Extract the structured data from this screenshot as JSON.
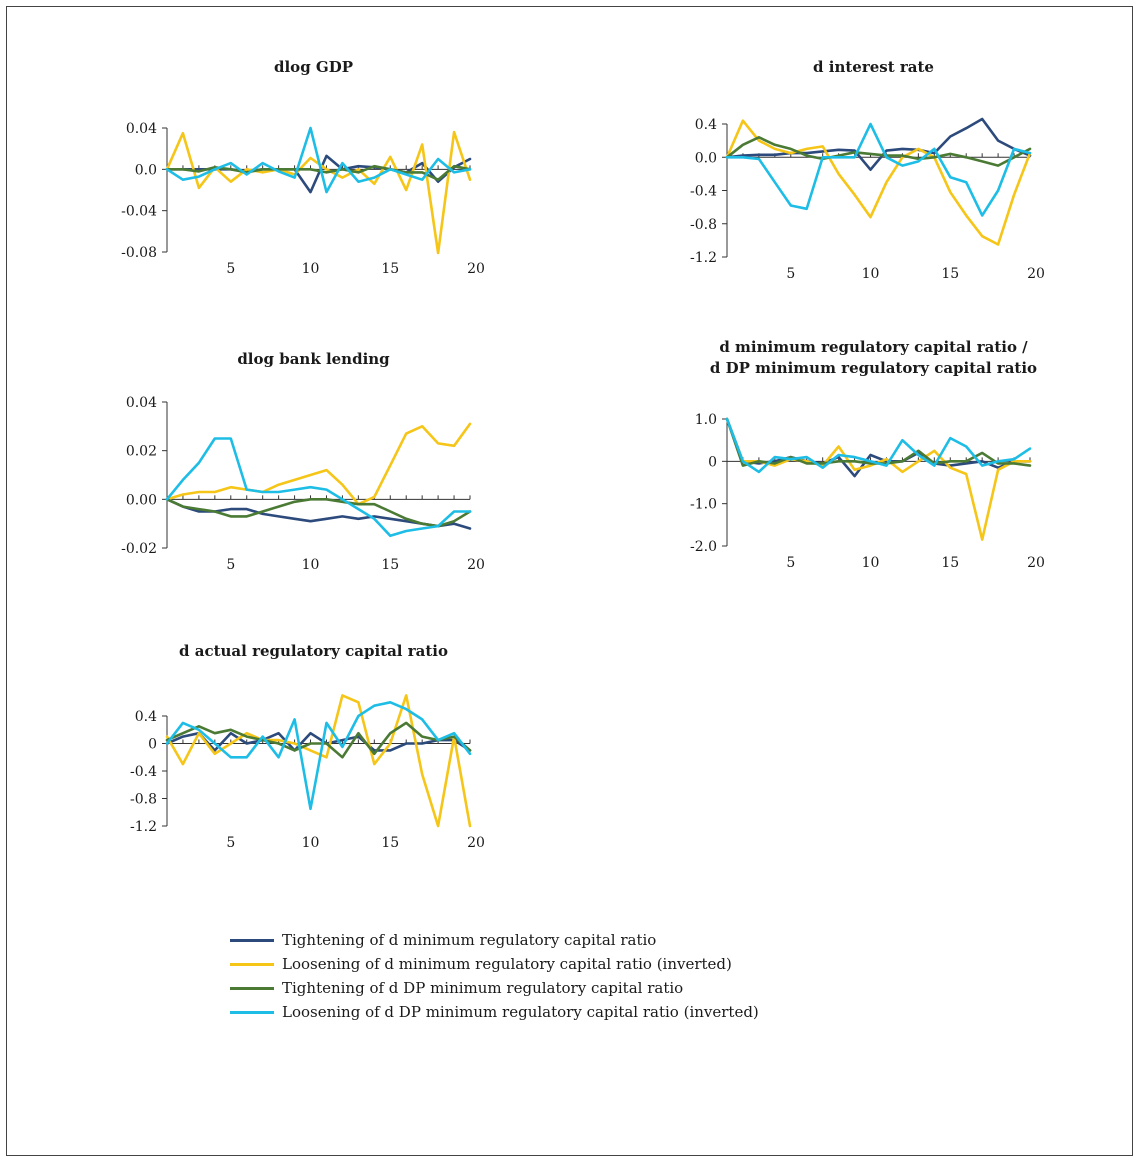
{
  "colors": {
    "tight_min": "#2c4a7c",
    "loose_min": "#f5c518",
    "tight_dp": "#4a7a34",
    "loose_dp": "#1dbde6",
    "axis": "#333333",
    "text": "#1a1a1a"
  },
  "legend": {
    "items": [
      {
        "key": "tight_min",
        "label": "Tightening of d minimum regulatory capital ratio"
      },
      {
        "key": "loose_min",
        "label": "Loosening of d minimum regulatory capital ratio (inverted)"
      },
      {
        "key": "tight_dp",
        "label": "Tightening  of d DP minimum regulatory capital ratio"
      },
      {
        "key": "loose_dp",
        "label": "Loosening of d DP minimum regulatory capital ratio (inverted)"
      }
    ]
  },
  "chart_data": [
    {
      "type": "line",
      "id": "gdp",
      "title": [
        "dlog GDP"
      ],
      "x": [
        1,
        2,
        3,
        4,
        5,
        6,
        7,
        8,
        9,
        10,
        11,
        12,
        13,
        14,
        15,
        16,
        17,
        18,
        19,
        20
      ],
      "xticks": [
        5,
        10,
        15,
        20
      ],
      "xticklabels": [
        "5",
        "10",
        "15",
        "20"
      ],
      "yticks": [
        0.04,
        0,
        -0.04,
        -0.08
      ],
      "yticklabels": [
        "0.04",
        "0.0",
        "-0.04",
        "-0.08"
      ],
      "ylim": [
        -0.08,
        0.04
      ],
      "series": [
        {
          "key": "tight_min",
          "values": [
            0,
            0,
            0,
            0,
            0,
            -0.002,
            0,
            0,
            0,
            -0.022,
            0.013,
            0,
            0.003,
            0.002,
            0,
            -0.003,
            0.006,
            -0.012,
            0.002,
            0.01
          ]
        },
        {
          "key": "loose_min",
          "values": [
            0,
            0.035,
            -0.018,
            0.002,
            -0.012,
            0,
            -0.003,
            0,
            -0.005,
            0.011,
            0,
            -0.008,
            0,
            -0.014,
            0.012,
            -0.02,
            0.024,
            -0.081,
            0.036,
            -0.01
          ]
        },
        {
          "key": "tight_dp",
          "values": [
            0,
            0,
            -0.002,
            0.002,
            0,
            -0.003,
            0,
            0,
            0,
            0,
            -0.003,
            0,
            -0.003,
            0.003,
            0,
            -0.003,
            -0.003,
            -0.01,
            0.003,
            0
          ]
        },
        {
          "key": "loose_dp",
          "values": [
            0,
            -0.01,
            -0.007,
            0,
            0.006,
            -0.005,
            0.006,
            -0.002,
            -0.008,
            0.04,
            -0.022,
            0.006,
            -0.012,
            -0.008,
            0,
            -0.005,
            -0.01,
            0.01,
            -0.003,
            0
          ]
        }
      ]
    },
    {
      "type": "line",
      "id": "interest",
      "title": [
        "d interest rate"
      ],
      "x": [
        1,
        2,
        3,
        4,
        5,
        6,
        7,
        8,
        9,
        10,
        11,
        12,
        13,
        14,
        15,
        16,
        17,
        18,
        19,
        20
      ],
      "xticks": [
        5,
        10,
        15,
        20
      ],
      "xticklabels": [
        "5",
        "10",
        "15",
        "20"
      ],
      "yticks": [
        0.4,
        0,
        -0.4,
        -0.8,
        -1.2
      ],
      "yticklabels": [
        "0.4",
        "0.0",
        "-0.4",
        "-0.8",
        "-1.2"
      ],
      "ylim": [
        -1.2,
        0.4
      ],
      "series": [
        {
          "key": "tight_min",
          "values": [
            0,
            0.02,
            0.03,
            0.03,
            0.05,
            0.05,
            0.07,
            0.09,
            0.08,
            -0.15,
            0.08,
            0.1,
            0.09,
            0.05,
            0.25,
            0.35,
            0.46,
            0.2,
            0.1,
            0.02
          ]
        },
        {
          "key": "loose_min",
          "values": [
            0,
            0.44,
            0.2,
            0.1,
            0.05,
            0.1,
            0.13,
            -0.2,
            -0.45,
            -0.72,
            -0.3,
            0,
            0.1,
            0,
            -0.42,
            -0.7,
            -0.95,
            -1.05,
            -0.45,
            0.05
          ]
        },
        {
          "key": "tight_dp",
          "values": [
            0,
            0.15,
            0.24,
            0.15,
            0.1,
            0.02,
            -0.02,
            0.02,
            0.06,
            0.04,
            0.02,
            0.02,
            -0.02,
            0,
            0.04,
            0,
            -0.05,
            -0.1,
            0,
            0.1
          ]
        },
        {
          "key": "loose_dp",
          "values": [
            0,
            0,
            -0.02,
            -0.3,
            -0.58,
            -0.62,
            0,
            0,
            0,
            0.4,
            0,
            -0.1,
            -0.05,
            0.1,
            -0.24,
            -0.3,
            -0.7,
            -0.4,
            0.1,
            0.05
          ]
        }
      ]
    },
    {
      "type": "line",
      "id": "lending",
      "title": [
        "dlog bank lending"
      ],
      "x": [
        1,
        2,
        3,
        4,
        5,
        6,
        7,
        8,
        9,
        10,
        11,
        12,
        13,
        14,
        15,
        16,
        17,
        18,
        19,
        20
      ],
      "xticks": [
        5,
        10,
        15,
        20
      ],
      "xticklabels": [
        "5",
        "10",
        "15",
        "20"
      ],
      "yticks": [
        0.04,
        0.02,
        0,
        -0.02
      ],
      "yticklabels": [
        "0.04",
        "0.02",
        "0.00",
        "-0.02"
      ],
      "ylim": [
        -0.02,
        0.04
      ],
      "series": [
        {
          "key": "tight_min",
          "values": [
            0,
            -0.003,
            -0.005,
            -0.005,
            -0.004,
            -0.004,
            -0.006,
            -0.007,
            -0.008,
            -0.009,
            -0.008,
            -0.007,
            -0.008,
            -0.007,
            -0.008,
            -0.009,
            -0.01,
            -0.011,
            -0.01,
            -0.012
          ]
        },
        {
          "key": "loose_min",
          "values": [
            0,
            0.002,
            0.003,
            0.003,
            0.005,
            0.004,
            0.003,
            0.006,
            0.008,
            0.01,
            0.012,
            0.006,
            -0.002,
            0.001,
            0.014,
            0.027,
            0.03,
            0.023,
            0.022,
            0.031
          ]
        },
        {
          "key": "tight_dp",
          "values": [
            0,
            -0.003,
            -0.004,
            -0.005,
            -0.007,
            -0.007,
            -0.005,
            -0.003,
            -0.001,
            0,
            0,
            -0.001,
            -0.002,
            -0.002,
            -0.005,
            -0.008,
            -0.01,
            -0.011,
            -0.009,
            -0.005
          ]
        },
        {
          "key": "loose_dp",
          "values": [
            0,
            0.008,
            0.015,
            0.025,
            0.025,
            0.004,
            0.003,
            0.003,
            0.004,
            0.005,
            0.004,
            0,
            -0.004,
            -0.008,
            -0.015,
            -0.013,
            -0.012,
            -0.011,
            -0.005,
            -0.005
          ]
        }
      ]
    },
    {
      "type": "line",
      "id": "minratio",
      "title": [
        "d minimum regulatory capital ratio /",
        "d DP minimum regulatory capital ratio"
      ],
      "x": [
        1,
        2,
        3,
        4,
        5,
        6,
        7,
        8,
        9,
        10,
        11,
        12,
        13,
        14,
        15,
        16,
        17,
        18,
        19,
        20
      ],
      "xticks": [
        5,
        10,
        15,
        20
      ],
      "xticklabels": [
        "5",
        "10",
        "15",
        "20"
      ],
      "yticks": [
        1,
        0,
        -1,
        -2
      ],
      "yticklabels": [
        "1.0",
        "0",
        "-1.0",
        "-2.0"
      ],
      "ylim": [
        -2,
        1
      ],
      "series": [
        {
          "key": "tight_min",
          "values": [
            1,
            0,
            -0.05,
            0,
            0.1,
            0,
            -0.05,
            0.1,
            -0.35,
            0.15,
            0,
            0,
            0.2,
            -0.05,
            -0.1,
            -0.05,
            0,
            -0.15,
            0,
            0
          ]
        },
        {
          "key": "loose_min",
          "values": [
            1,
            0,
            0,
            -0.1,
            0.05,
            0,
            -0.1,
            0.35,
            -0.2,
            -0.1,
            0.05,
            -0.25,
            0,
            0.25,
            -0.15,
            -0.3,
            -1.85,
            -0.2,
            0,
            0
          ]
        },
        {
          "key": "tight_dp",
          "values": [
            1,
            -0.1,
            0,
            -0.05,
            0.1,
            -0.05,
            -0.05,
            0,
            0,
            -0.05,
            -0.05,
            0,
            0.25,
            -0.05,
            0,
            0,
            0.2,
            -0.05,
            -0.05,
            -0.1
          ]
        },
        {
          "key": "loose_dp",
          "values": [
            1,
            0,
            -0.25,
            0.1,
            0.05,
            0.1,
            -0.15,
            0.15,
            0.1,
            0,
            -0.1,
            0.5,
            0.15,
            -0.1,
            0.55,
            0.35,
            -0.1,
            0,
            0.05,
            0.3
          ]
        }
      ]
    },
    {
      "type": "line",
      "id": "actual",
      "title": [
        "d actual regulatory capital ratio"
      ],
      "x": [
        1,
        2,
        3,
        4,
        5,
        6,
        7,
        8,
        9,
        10,
        11,
        12,
        13,
        14,
        15,
        16,
        17,
        18,
        19,
        20
      ],
      "xticks": [
        5,
        10,
        15,
        20
      ],
      "xticklabels": [
        "5",
        "10",
        "15",
        "20"
      ],
      "yticks": [
        0.4,
        0,
        -0.4,
        -0.8,
        -1.2
      ],
      "yticklabels": [
        "0.4",
        "0",
        "-0.4",
        "-0.8",
        "-1.2"
      ],
      "ylim": [
        -1.2,
        0.4
      ],
      "series": [
        {
          "key": "tight_min",
          "values": [
            0,
            0.1,
            0.15,
            -0.1,
            0.15,
            0,
            0.05,
            0.15,
            -0.1,
            0.15,
            0,
            0.05,
            0.1,
            -0.1,
            -0.1,
            0,
            0,
            0.05,
            0.05,
            -0.1
          ]
        },
        {
          "key": "loose_min",
          "values": [
            0.1,
            -0.3,
            0.15,
            -0.15,
            0,
            0.15,
            0.05,
            0.05,
            0,
            -0.1,
            -0.2,
            0.7,
            0.6,
            -0.3,
            0,
            0.7,
            -0.45,
            -1.2,
            0.1,
            -1.2
          ]
        },
        {
          "key": "tight_dp",
          "values": [
            0.05,
            0.15,
            0.25,
            0.15,
            0.2,
            0.1,
            0.05,
            0,
            -0.1,
            0,
            0,
            -0.2,
            0.15,
            -0.15,
            0.15,
            0.3,
            0.1,
            0.05,
            0.1,
            -0.1
          ]
        },
        {
          "key": "loose_dp",
          "values": [
            0,
            0.3,
            0.2,
            0,
            -0.2,
            -0.2,
            0.1,
            -0.2,
            0.35,
            -0.95,
            0.3,
            -0.05,
            0.4,
            0.55,
            0.6,
            0.5,
            0.35,
            0.05,
            0.15,
            -0.15
          ]
        }
      ]
    }
  ]
}
